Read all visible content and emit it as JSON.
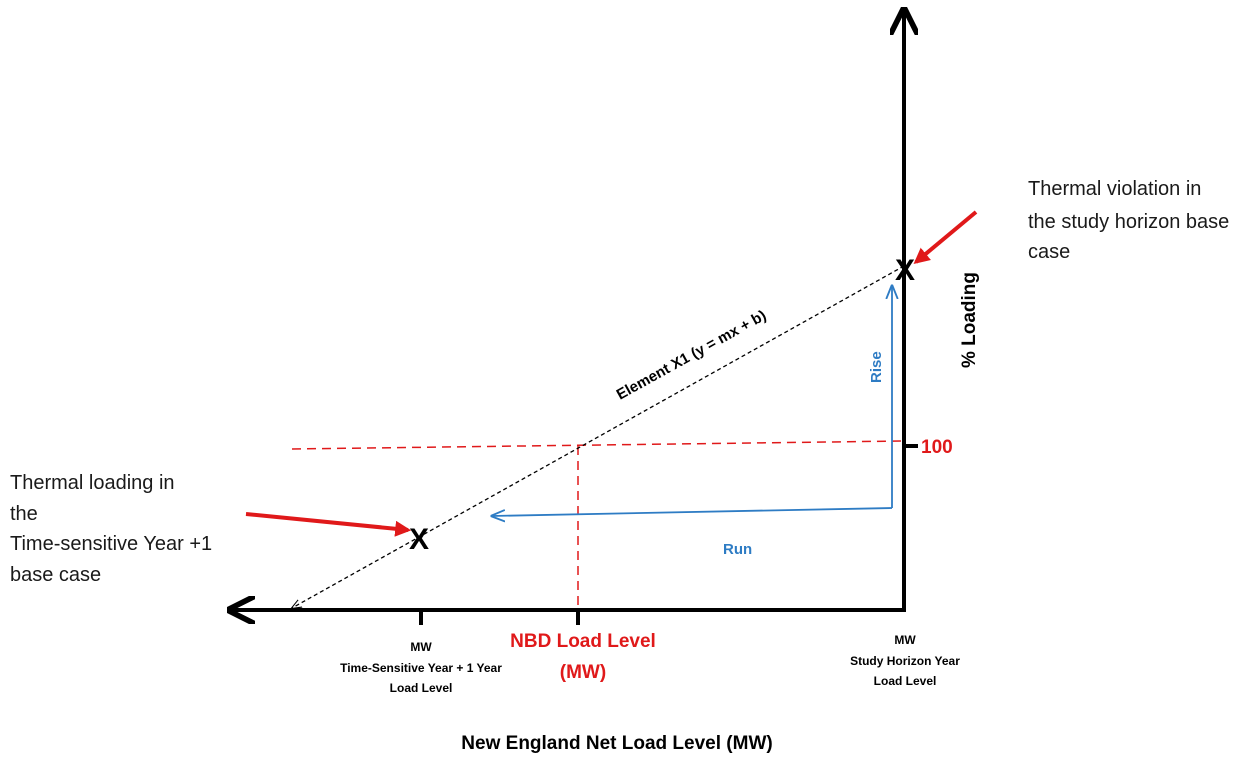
{
  "axes": {
    "x_title": "New England Net Load Level (MW)",
    "y_title": "% Loading",
    "y_tick_label": "100"
  },
  "x_ticks": {
    "left": {
      "unit": "MW",
      "line1": "Time-Sensitive Year + 1 Year",
      "line2": "Load Level"
    },
    "nbd": {
      "line1": "NBD Load Level",
      "line2": "(MW)"
    },
    "right": {
      "unit": "MW",
      "line1": "Study Horizon Year",
      "line2": "Load Level"
    }
  },
  "line_label": "Element X1 (y = mx + b)",
  "markers": {
    "symbol": "X"
  },
  "annotations": {
    "violation": [
      "Thermal violation in",
      "the study horizon base",
      "case"
    ],
    "loading": [
      "Thermal loading  in",
      "the",
      "Time-sensitive Year +1",
      "base case"
    ]
  },
  "arrow_labels": {
    "rise": "Rise",
    "run": "Run"
  },
  "colors": {
    "axis": "#000000",
    "dashed_red": "#e0191a",
    "arrow_red": "#e0191a",
    "arrow_blue": "#2e7cc4",
    "text_red": "#e0191a",
    "text_blue": "#2e7cc4",
    "text_dark": "#1a1a1a"
  }
}
